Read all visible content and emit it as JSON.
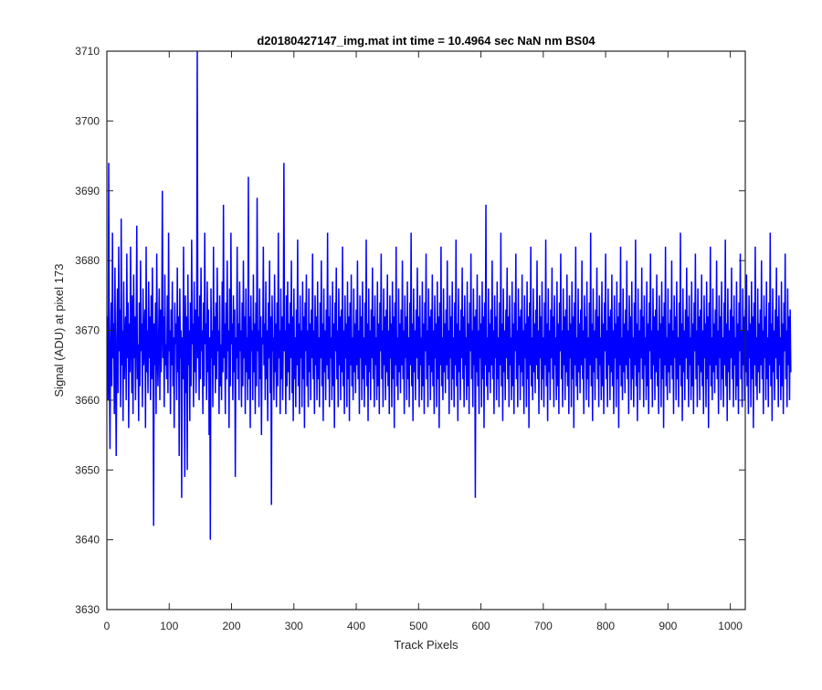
{
  "chart_data": {
    "type": "line",
    "title": "d20180427147_img.mat int time = 10.4964 sec  NaN nm BS04",
    "xlabel": "Track Pixels",
    "ylabel": "Signal (ADU) at pixel 173",
    "xlim": [
      0,
      1024
    ],
    "ylim": [
      3630,
      3710
    ],
    "xticks": [
      0,
      100,
      200,
      300,
      400,
      500,
      600,
      700,
      800,
      900,
      1000
    ],
    "yticks": [
      3630,
      3640,
      3650,
      3660,
      3670,
      3680,
      3690,
      3700,
      3710
    ],
    "grid": false,
    "series": [
      {
        "color": "#0000ff",
        "x_start": 1,
        "x_step": 1,
        "values": [
          3672,
          3660,
          3694,
          3665,
          3653,
          3668,
          3674,
          3662,
          3684,
          3666,
          3671,
          3658,
          3679,
          3664,
          3652,
          3669,
          3676,
          3661,
          3682,
          3667,
          3673,
          3659,
          3686,
          3665,
          3670,
          3657,
          3677,
          3663,
          3668,
          3672,
          3660,
          3681,
          3666,
          3674,
          3656,
          3671,
          3664,
          3682,
          3669,
          3661,
          3675,
          3658,
          3678,
          3666,
          3672,
          3660,
          3670,
          3685,
          3663,
          3668,
          3657,
          3674,
          3662,
          3680,
          3667,
          3671,
          3659,
          3676,
          3665,
          3669,
          3673,
          3656,
          3682,
          3664,
          3670,
          3661,
          3677,
          3666,
          3672,
          3660,
          3675,
          3663,
          3679,
          3668,
          3642,
          3671,
          3665,
          3674,
          3658,
          3681,
          3667,
          3662,
          3669,
          3676,
          3660,
          3673,
          3664,
          3670,
          3690,
          3666,
          3672,
          3659,
          3678,
          3665,
          3668,
          3663,
          3675,
          3661,
          3684,
          3667,
          3670,
          3658,
          3673,
          3665,
          3677,
          3662,
          3669,
          3656,
          3674,
          3668,
          3671,
          3660,
          3679,
          3664,
          3672,
          3652,
          3676,
          3666,
          3670,
          3646,
          3669,
          3663,
          3682,
          3667,
          3649,
          3675,
          3661,
          3672,
          3650,
          3678,
          3665,
          3670,
          3657,
          3674,
          3662,
          3683,
          3668,
          3671,
          3659,
          3677,
          3664,
          3673,
          3661,
          3669,
          3710,
          3666,
          3672,
          3660,
          3675,
          3663,
          3679,
          3667,
          3670,
          3658,
          3674,
          3662,
          3684,
          3668,
          3671,
          3660,
          3677,
          3664,
          3673,
          3655,
          3669,
          3640,
          3676,
          3666,
          3670,
          3659,
          3682,
          3665,
          3672,
          3661,
          3674,
          3663,
          3679,
          3667,
          3670,
          3658,
          3675,
          3662,
          3668,
          3660,
          3677,
          3664,
          3688,
          3666,
          3671,
          3658,
          3674,
          3663,
          3680,
          3667,
          3670,
          3656,
          3676,
          3662,
          3684,
          3668,
          3671,
          3660,
          3675,
          3664,
          3673,
          3649,
          3669,
          3666,
          3682,
          3663,
          3671,
          3660,
          3677,
          3667,
          3670,
          3659,
          3674,
          3662,
          3680,
          3666,
          3672,
          3658,
          3676,
          3664,
          3669,
          3660,
          3692,
          3663,
          3672,
          3656,
          3675,
          3667,
          3670,
          3660,
          3678,
          3664,
          3671,
          3658,
          3674,
          3662,
          3689,
          3667,
          3670,
          3659,
          3676,
          3663,
          3672,
          3655,
          3669,
          3668,
          3682,
          3665,
          3671,
          3660,
          3677,
          3663,
          3670,
          3657,
          3674,
          3666,
          3680,
          3661,
          3672,
          3645,
          3675,
          3667,
          3669,
          3660,
          3678,
          3664,
          3671,
          3659,
          3674,
          3662,
          3684,
          3666,
          3670,
          3658,
          3676,
          3663,
          3672,
          3660,
          3669,
          3694,
          3667,
          3670,
          3658,
          3675,
          3662,
          3677,
          3664,
          3671,
          3660,
          3674,
          3666,
          3680,
          3661,
          3672,
          3657,
          3676,
          3663,
          3669,
          3659,
          3673,
          3665,
          3683,
          3662,
          3671,
          3658,
          3675,
          3666,
          3670,
          3659,
          3677,
          3663,
          3672,
          3656,
          3674,
          3667,
          3678,
          3662,
          3670,
          3659,
          3676,
          3664,
          3671,
          3660,
          3673,
          3666,
          3681,
          3663,
          3670,
          3658,
          3675,
          3665,
          3672,
          3660,
          3677,
          3663,
          3669,
          3659,
          3674,
          3666,
          3680,
          3662,
          3671,
          3657,
          3676,
          3664,
          3670,
          3660,
          3673,
          3665,
          3684,
          3663,
          3672,
          3659,
          3675,
          3666,
          3669,
          3660,
          3677,
          3662,
          3671,
          3656,
          3674,
          3667,
          3679,
          3663,
          3670,
          3659,
          3676,
          3665,
          3672,
          3660,
          3673,
          3664,
          3682,
          3662,
          3670,
          3658,
          3675,
          3666,
          3671,
          3659,
          3677,
          3663,
          3672,
          3657,
          3674,
          3665,
          3678,
          3662,
          3669,
          3660,
          3676,
          3664,
          3671,
          3661,
          3673,
          3665,
          3680,
          3663,
          3670,
          3658,
          3675,
          3666,
          3672,
          3660,
          3677,
          3663,
          3669,
          3659,
          3674,
          3665,
          3683,
          3662,
          3671,
          3657,
          3676,
          3664,
          3670,
          3660,
          3673,
          3666,
          3679,
          3663,
          3672,
          3659,
          3675,
          3665,
          3669,
          3660,
          3677,
          3662,
          3671,
          3658,
          3674,
          3667,
          3681,
          3663,
          3670,
          3659,
          3676,
          3665,
          3672,
          3660,
          3673,
          3664,
          3678,
          3662,
          3670,
          3658,
          3675,
          3666,
          3671,
          3659,
          3677,
          3663,
          3672,
          3656,
          3674,
          3665,
          3682,
          3662,
          3669,
          3660,
          3676,
          3664,
          3671,
          3661,
          3673,
          3665,
          3680,
          3663,
          3670,
          3658,
          3675,
          3666,
          3672,
          3660,
          3677,
          3663,
          3669,
          3659,
          3674,
          3665,
          3684,
          3662,
          3671,
          3657,
          3676,
          3664,
          3670,
          3660,
          3673,
          3666,
          3679,
          3663,
          3672,
          3659,
          3675,
          3665,
          3669,
          3660,
          3677,
          3662,
          3671,
          3658,
          3674,
          3667,
          3681,
          3663,
          3670,
          3659,
          3676,
          3665,
          3672,
          3660,
          3673,
          3664,
          3678,
          3662,
          3670,
          3658,
          3675,
          3666,
          3671,
          3659,
          3677,
          3663,
          3672,
          3656,
          3674,
          3665,
          3682,
          3662,
          3669,
          3660,
          3676,
          3664,
          3671,
          3661,
          3673,
          3665,
          3680,
          3663,
          3670,
          3658,
          3675,
          3666,
          3672,
          3660,
          3677,
          3663,
          3669,
          3659,
          3674,
          3665,
          3683,
          3662,
          3671,
          3657,
          3676,
          3664,
          3670,
          3660,
          3673,
          3666,
          3679,
          3663,
          3672,
          3659,
          3675,
          3665,
          3669,
          3660,
          3677,
          3662,
          3671,
          3658,
          3674,
          3667,
          3681,
          3663,
          3670,
          3659,
          3676,
          3665,
          3672,
          3646,
          3673,
          3664,
          3678,
          3662,
          3670,
          3658,
          3675,
          3666,
          3671,
          3659,
          3677,
          3663,
          3672,
          3656,
          3674,
          3665,
          3688,
          3662,
          3669,
          3660,
          3676,
          3664,
          3671,
          3661,
          3673,
          3665,
          3680,
          3663,
          3670,
          3658,
          3675,
          3666,
          3672,
          3660,
          3677,
          3663,
          3669,
          3659,
          3674,
          3665,
          3684,
          3662,
          3671,
          3657,
          3676,
          3664,
          3670,
          3660,
          3673,
          3666,
          3679,
          3663,
          3672,
          3659,
          3675,
          3665,
          3669,
          3660,
          3677,
          3662,
          3671,
          3658,
          3674,
          3667,
          3681,
          3663,
          3670,
          3659,
          3676,
          3665,
          3672,
          3660,
          3673,
          3664,
          3678,
          3662,
          3670,
          3658,
          3675,
          3666,
          3671,
          3659,
          3677,
          3663,
          3672,
          3656,
          3674,
          3665,
          3682,
          3662,
          3669,
          3660,
          3676,
          3664,
          3671,
          3661,
          3673,
          3665,
          3680,
          3663,
          3670,
          3658,
          3675,
          3666,
          3672,
          3660,
          3677,
          3663,
          3669,
          3659,
          3674,
          3665,
          3683,
          3662,
          3671,
          3657,
          3676,
          3664,
          3670,
          3660,
          3673,
          3666,
          3679,
          3663,
          3672,
          3659,
          3675,
          3665,
          3669,
          3660,
          3677,
          3662,
          3671,
          3658,
          3674,
          3667,
          3681,
          3663,
          3670,
          3659,
          3676,
          3665,
          3672,
          3660,
          3673,
          3664,
          3678,
          3662,
          3670,
          3658,
          3675,
          3666,
          3671,
          3659,
          3677,
          3663,
          3672,
          3656,
          3674,
          3665,
          3682,
          3662,
          3669,
          3660,
          3676,
          3664,
          3671,
          3661,
          3673,
          3665,
          3680,
          3663,
          3670,
          3658,
          3675,
          3666,
          3672,
          3660,
          3677,
          3663,
          3669,
          3659,
          3674,
          3665,
          3684,
          3662,
          3671,
          3657,
          3676,
          3664,
          3670,
          3660,
          3673,
          3666,
          3679,
          3663,
          3672,
          3659,
          3675,
          3665,
          3669,
          3660,
          3677,
          3662,
          3671,
          3658,
          3674,
          3667,
          3681,
          3663,
          3670,
          3659,
          3676,
          3665,
          3672,
          3660,
          3673,
          3664,
          3678,
          3662,
          3670,
          3658,
          3675,
          3666,
          3671,
          3659,
          3677,
          3663,
          3672,
          3656,
          3674,
          3665,
          3682,
          3662,
          3669,
          3660,
          3676,
          3664,
          3671,
          3661,
          3673,
          3665,
          3680,
          3663,
          3670,
          3658,
          3675,
          3666,
          3672,
          3660,
          3677,
          3663,
          3669,
          3659,
          3674,
          3665,
          3683,
          3662,
          3671,
          3657,
          3676,
          3664,
          3670,
          3660,
          3673,
          3666,
          3679,
          3663,
          3672,
          3659,
          3675,
          3665,
          3669,
          3660,
          3677,
          3662,
          3671,
          3658,
          3674,
          3667,
          3681,
          3663,
          3670,
          3659,
          3676,
          3665,
          3672,
          3660,
          3673,
          3664,
          3678,
          3662,
          3670,
          3658,
          3675,
          3666,
          3671,
          3659,
          3677,
          3663,
          3672,
          3656,
          3674,
          3665,
          3682,
          3662,
          3669,
          3660,
          3676,
          3664,
          3671,
          3661,
          3673,
          3665,
          3680,
          3663,
          3670,
          3658,
          3675,
          3666,
          3672,
          3660,
          3677,
          3663,
          3669,
          3659,
          3674,
          3665,
          3684,
          3662,
          3671,
          3657,
          3676,
          3664,
          3670,
          3660,
          3673,
          3666,
          3679,
          3663,
          3672,
          3659,
          3675,
          3665,
          3669,
          3660,
          3677,
          3662,
          3671,
          3658,
          3674,
          3667,
          3681,
          3663,
          3670,
          3659,
          3676,
          3665,
          3672,
          3660,
          3673,
          3664,
          3678,
          3662,
          3670,
          3658,
          3675,
          3666,
          3671,
          3659,
          3677,
          3663,
          3672,
          3656,
          3674,
          3665,
          3682,
          3662,
          3669,
          3660,
          3676,
          3664,
          3671,
          3661,
          3673,
          3665,
          3680,
          3663,
          3670,
          3658,
          3675,
          3666,
          3672,
          3660,
          3677,
          3663,
          3669,
          3659,
          3674,
          3665,
          3683,
          3662,
          3671,
          3657,
          3676,
          3664,
          3670,
          3660,
          3673,
          3666,
          3679,
          3663,
          3672,
          3659,
          3675,
          3665,
          3669,
          3660,
          3677,
          3662,
          3671,
          3658,
          3674,
          3667,
          3681,
          3663,
          3670,
          3659,
          3676,
          3665,
          3672,
          3660,
          3673,
          3664,
          3678,
          3662,
          3670,
          3658,
          3675,
          3666,
          3671,
          3659,
          3677,
          3663,
          3672,
          3656,
          3674,
          3665,
          3682,
          3662,
          3669,
          3660,
          3676,
          3664,
          3671,
          3661,
          3673,
          3665,
          3680,
          3663,
          3670,
          3658,
          3675,
          3666,
          3672,
          3660,
          3677,
          3663,
          3669,
          3659,
          3674,
          3665,
          3684,
          3662,
          3671,
          3657,
          3676,
          3664,
          3670,
          3660,
          3673,
          3666,
          3679,
          3663,
          3672,
          3659,
          3675,
          3665,
          3669,
          3660,
          3677,
          3662,
          3671,
          3658,
          3674,
          3667,
          3681,
          3663,
          3670,
          3659,
          3676,
          3665,
          3672,
          3660,
          3673,
          3664
        ]
      }
    ]
  }
}
